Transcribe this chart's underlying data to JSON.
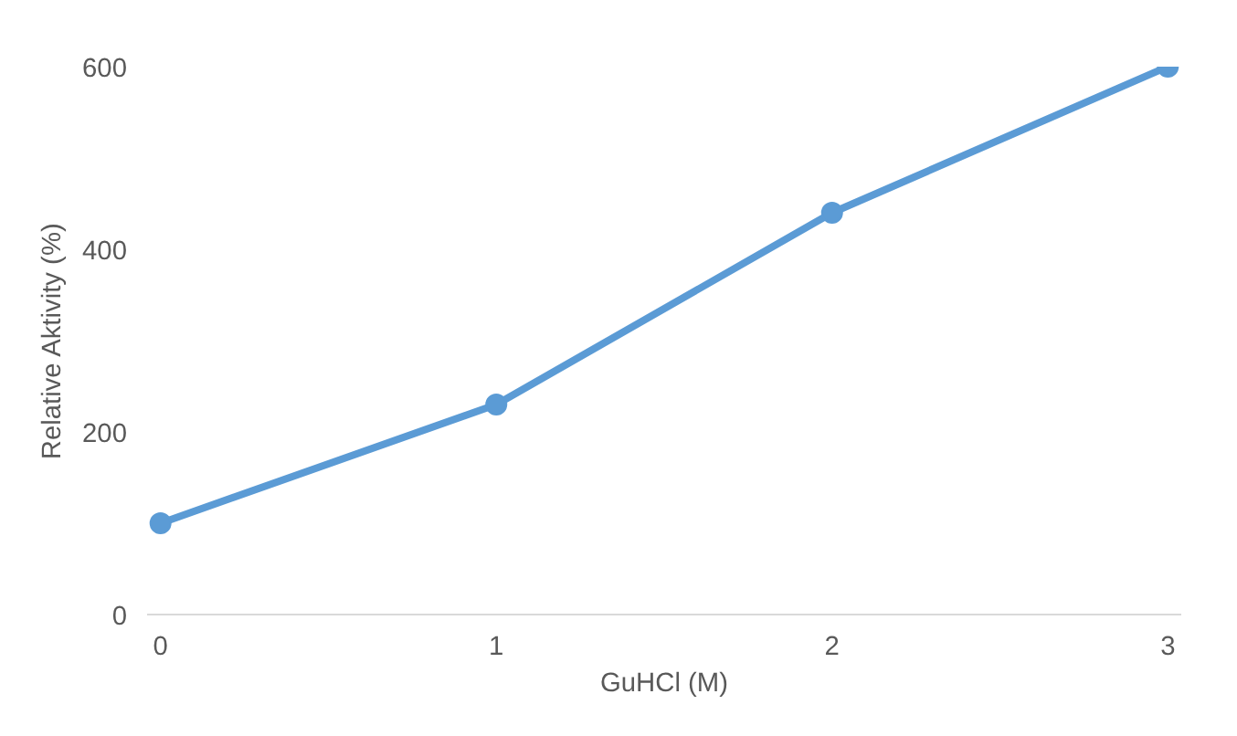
{
  "chart_data": {
    "type": "line",
    "xlabel": "GuHCl (M)",
    "ylabel": "Relative Aktivity (%)",
    "categories": [
      "0",
      "1",
      "2",
      "3"
    ],
    "series": [
      {
        "color": "#5b9bd5",
        "values": [
          100,
          230,
          440,
          600
        ]
      }
    ],
    "ylim": [
      0,
      600
    ],
    "yticks": [
      0,
      200,
      400,
      600
    ],
    "grid": false,
    "marker": "circle",
    "line_style": "solid"
  }
}
